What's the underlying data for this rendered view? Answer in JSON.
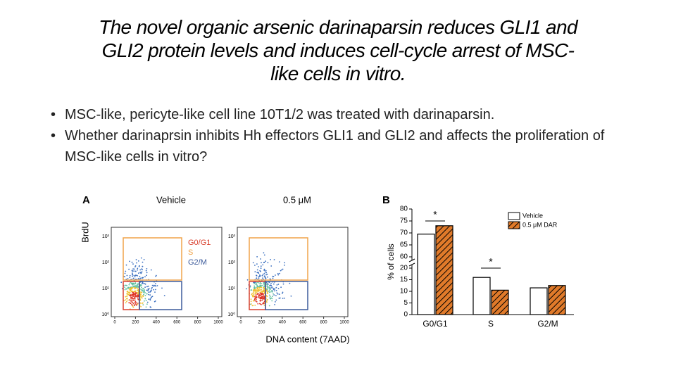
{
  "slide": {
    "title_lines": [
      "The novel organic arsenic darinaparsin reduces GLI1 and",
      "GLI2 protein levels and induces cell-cycle arrest of MSC-",
      "like cells in vitro."
    ],
    "bullets": [
      "MSC-like, pericyte-like cell line 10T1/2 was treated with darinaparsin.",
      "Whether darinaprsin inhibits Hh effectors GLI1 and GLI2 and affects the proliferation of MSC-like cells in vitro?"
    ]
  },
  "panel_a": {
    "label": "A",
    "y_label": "BrdU",
    "x_label": "DNA content (7AAD)",
    "plots": [
      "Vehicle",
      "0.5 μM"
    ],
    "gates": [
      "G0/G1",
      "S",
      "G2/M"
    ],
    "gate_colors": [
      "#d9412e",
      "#f0a44a",
      "#3c5a9a"
    ],
    "yticks": [
      "10⁰",
      "10¹",
      "10²",
      "10³"
    ],
    "xticks": [
      0,
      200,
      400,
      600,
      800,
      1000
    ]
  },
  "chart_data": {
    "type": "bar",
    "panel_label": "B",
    "y_label": "% of cells",
    "categories": [
      "G0/G1",
      "S",
      "G2/M"
    ],
    "series": [
      {
        "name": "Vehicle",
        "color": "#ffffff",
        "values": [
          69.5,
          16,
          11.5
        ]
      },
      {
        "name": "0.5 μM DAR",
        "color": "#e07a2a",
        "values": [
          73,
          10.5,
          12.5
        ]
      }
    ],
    "ylim_lower": [
      0,
      20
    ],
    "ylim_upper": [
      60,
      80
    ],
    "yticks": [
      0,
      5,
      10,
      15,
      20,
      60,
      65,
      70,
      75,
      80
    ],
    "annotations": [
      "*",
      "*"
    ],
    "legend": "upper right"
  }
}
